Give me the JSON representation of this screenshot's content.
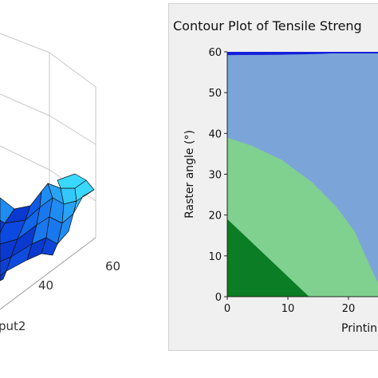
{
  "left_chart": {
    "tick_labels": [
      "40",
      "60"
    ],
    "axis_label": "put2",
    "colors": {
      "surface_dark": "#0a39cf",
      "surface_mid": "#1f8cf2",
      "surface_light": "#39d9ff",
      "edge": "#111111",
      "grid": "#c7c7c7"
    }
  },
  "chart_data": {
    "type": "contour",
    "title": "Contour Plot of Tensile Streng",
    "xlabel": "Printin",
    "ylabel": "Raster angle (°)",
    "x_ticks": [
      "0",
      "10",
      "20"
    ],
    "y_ticks": [
      "0",
      "10",
      "20",
      "30",
      "40",
      "50",
      "60"
    ],
    "xlim": [
      0,
      25
    ],
    "ylim": [
      0,
      60
    ],
    "regions": [
      {
        "name": "darkest",
        "color": "#0b7d24",
        "boundary_x": [
          0,
          13.5
        ],
        "boundary_y": [
          19,
          0
        ]
      },
      {
        "name": "light-green",
        "color": "#80d090",
        "boundary_x": [
          0,
          4,
          9,
          14,
          18,
          21,
          24,
          25
        ],
        "boundary_y": [
          39,
          37,
          33.5,
          28,
          22,
          16,
          6,
          3
        ]
      },
      {
        "name": "blue",
        "color": "#7ba5d8",
        "boundary_x": [],
        "boundary_y": []
      },
      {
        "name": "top-dark-blue",
        "color": "#1520d9",
        "boundary_x": [
          0,
          25
        ],
        "boundary_y": [
          59.2,
          58.8
        ]
      }
    ]
  }
}
